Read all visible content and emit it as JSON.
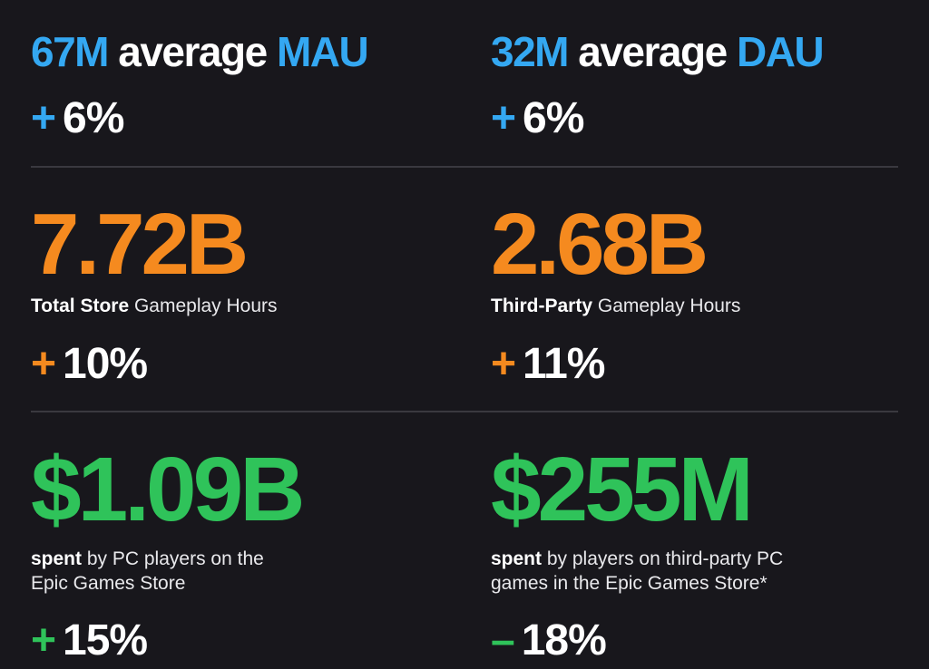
{
  "row1": {
    "left": {
      "number": "67M",
      "mid": "average",
      "metric": "MAU",
      "change_sign": "+",
      "change_value": "6%"
    },
    "right": {
      "number": "32M",
      "mid": "average",
      "metric": "DAU",
      "change_sign": "+",
      "change_value": "6%"
    }
  },
  "row2": {
    "left": {
      "big": "7.72B",
      "caption_bold": "Total Store",
      "caption_rest": "Gameplay Hours",
      "change_sign": "+",
      "change_value": "10%"
    },
    "right": {
      "big": "2.68B",
      "caption_bold": "Third-Party",
      "caption_rest": "Gameplay Hours",
      "change_sign": "+",
      "change_value": "11%"
    }
  },
  "row3": {
    "left": {
      "big": "$1.09B",
      "caption_bold": "spent",
      "caption_line1": "by PC players on the",
      "caption_line2": "Epic Games Store",
      "change_sign": "+",
      "change_value": "15%"
    },
    "right": {
      "big": "$255M",
      "caption_bold": "spent",
      "caption_line1": "by players on third-party PC",
      "caption_line2": "games in the Epic Games Store*",
      "change_sign": "–",
      "change_value": "18%"
    }
  },
  "colors": {
    "background": "#18171c",
    "blue": "#34a8f2",
    "orange": "#f58a1f",
    "green": "#2fc35a",
    "divider": "#3a393f"
  }
}
